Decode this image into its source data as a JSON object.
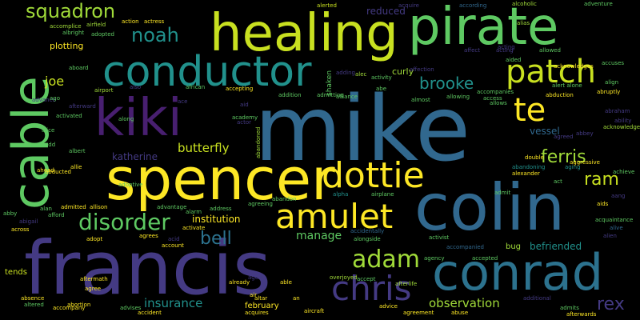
{
  "words": {
    "mike": "mike",
    "francis": "francis",
    "colin": "colin",
    "spencer": "spencer",
    "conrad": "conrad",
    "healing": "healing",
    "pirate": "pirate",
    "cable": "cable",
    "kiki": "kiki",
    "conductor": "conductor",
    "dottie": "dottie",
    "amulet": "amulet",
    "patch": "patch",
    "chris": "chris",
    "te": "te",
    "adam": "adam",
    "disorder": "disorder",
    "squadron": "squadron",
    "noah": "noah",
    "ferris": "ferris",
    "brooke": "brooke",
    "bell": "bell",
    "ram": "ram",
    "rex": "rex",
    "butterfly": "butterfly",
    "insurance": "insurance",
    "observation": "observation",
    "joe": "joe",
    "manage": "manage",
    "katherine": "katherine",
    "institution": "institution",
    "reduced": "reduced",
    "curly": "curly",
    "plotting": "plotting",
    "befriended": "befriended",
    "vessel": "vessel",
    "february": "february",
    "tends": "tends",
    "alcoholic": "alcoholic",
    "adventure": "adventure",
    "alerted": "alerted",
    "acquire": "acquire",
    "action": "action",
    "actress": "actress",
    "according": "according",
    "accomplice": "accomplice",
    "airfield": "airfield",
    "albright": "albright",
    "adopted": "adopted",
    "alias": "alias",
    "allowed": "allowed",
    "abduction": "abduction",
    "accuses": "accuses",
    "abandoning": "abandoning",
    "alexander": "alexander",
    "aging": "aging",
    "achieve": "achieve",
    "abruptly": "abruptly",
    "alive": "alive",
    "aids": "aids",
    "aang": "aang",
    "acquaintance": "acquaintance",
    "alien": "alien",
    "activist": "activist",
    "accompanied": "accompanied",
    "accepted": "accepted",
    "accept": "accept",
    "agency": "agency",
    "bug": "bug",
    "alongside": "alongside",
    "accidentally": "accidentally",
    "airplane": "airplane",
    "alpha": "alpha",
    "admit": "admit",
    "overjoyed": "overjoyed",
    "afterlife": "afterlife",
    "advice": "advice",
    "agreement": "agreement",
    "abuse": "abuse",
    "additional": "additional",
    "admits": "admits",
    "afterwards": "afterwards",
    "aircraft": "aircraft",
    "altar": "altar",
    "acquires": "acquires",
    "accident": "accident",
    "advises": "advises",
    "abortion": "abortion",
    "agree": "agree",
    "aftermath": "aftermath",
    "already": "already",
    "able": "able",
    "agent": "agent",
    "accompany": "accompany",
    "altered": "altered",
    "absence": "absence",
    "abby": "abby",
    "abigail": "abigail",
    "across": "across",
    "afford": "afford",
    "admitted": "admitted",
    "alan": "alan",
    "allison": "allison",
    "adopt": "adopt",
    "agrees": "agrees",
    "account": "account",
    "acid": "acid",
    "activate": "activate",
    "alarm": "alarm",
    "address": "address",
    "advantage": "advantage",
    "adoptive": "adoptive",
    "abandon": "abandon",
    "agreeing": "agreeing",
    "abandoned": "abandoned",
    "abducted": "abducted",
    "ahead": "ahead",
    "albert": "albert",
    "allie": "allie",
    "add": "add",
    "alice": "alice",
    "activated": "activated",
    "afterward": "afterward",
    "advance": "advance",
    "ago": "ago",
    "aboard": "aboard",
    "airport": "airport",
    "also": "also",
    "african": "african",
    "ace": "ace",
    "accepting": "accepting",
    "aid": "aid",
    "academy": "academy",
    "along": "along",
    "addition": "addition",
    "admitting": "admitting",
    "alliance": "alliance",
    "abe": "abe",
    "allowing": "allowing",
    "almost": "almost",
    "access": "access",
    "accompanies": "accompanies",
    "allows": "allows",
    "aided": "aided",
    "acting": "acting",
    "affect": "affect",
    "activity": "activity",
    "affection": "affection",
    "alec": "alec",
    "adding": "adding",
    "shaken": "shaken",
    "acknowledge": "acknowledge",
    "acknowledges": "acknowledges",
    "abraham": "abraham",
    "align": "align",
    "ability": "ability",
    "abbey": "abbey",
    "agreed": "agreed",
    "aggressive": "aggressive",
    "double": "double",
    "act": "act",
    "alert alone": "alert alone",
    "air": "air",
    "an": "an",
    "actor": "actor",
    "acting2": "acting"
  }
}
